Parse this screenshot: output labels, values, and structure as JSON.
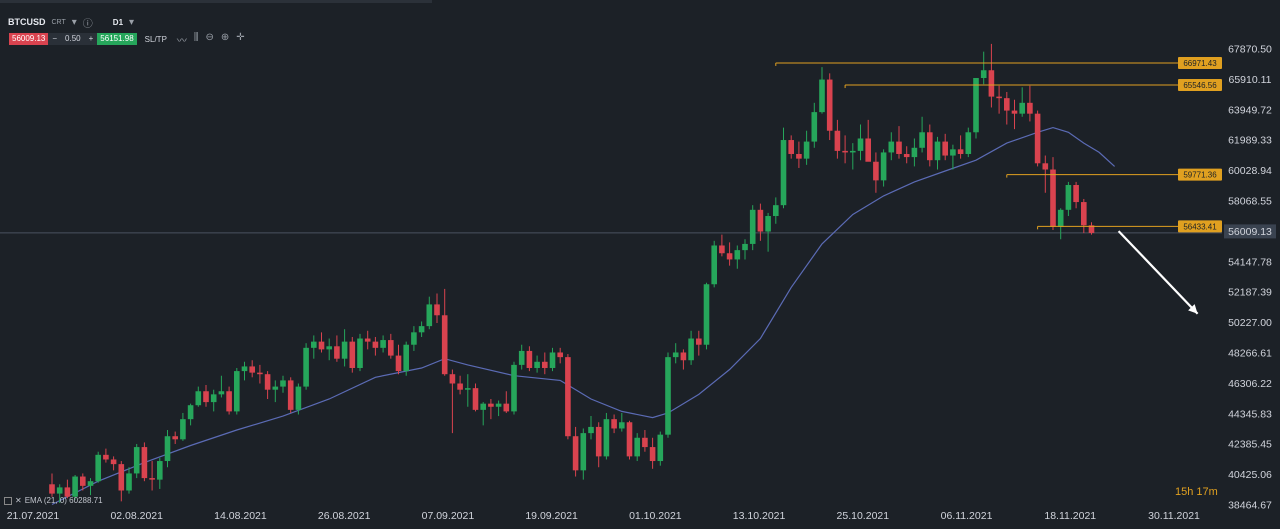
{
  "header": {
    "symbol": "BTCUSD",
    "symbol_type": "CRT",
    "timeframe": "D1",
    "sell_price": "56009.13",
    "minus": "−",
    "quantity": "0.50",
    "plus": "+",
    "buy_price": "56151.98",
    "sltp_label": "SL/TP"
  },
  "indicator": {
    "label": "EMA (21, 0) 60288.71"
  },
  "countdown": {
    "hours": "15h",
    "minutes": "17m"
  },
  "colors": {
    "background": "#1c2127",
    "up": "#26a65b",
    "down": "#d9434f",
    "ema": "#5b6bb5",
    "level": "#e0a020",
    "current_price": "#3a4048",
    "arrow": "#ffffff"
  },
  "chart_data": {
    "type": "candlestick",
    "symbol": "BTCUSD",
    "timeframe": "D1",
    "y_ticks": [
      "67870.50",
      "65910.11",
      "63949.72",
      "61989.33",
      "60028.94",
      "58068.55",
      "56009.13",
      "54147.78",
      "52187.39",
      "50227.00",
      "48266.61",
      "46306.22",
      "44345.83",
      "42385.45",
      "40425.06",
      "38464.67"
    ],
    "x_ticks": [
      "21.07.2021",
      "02.08.2021",
      "14.08.2021",
      "26.08.2021",
      "07.09.2021",
      "19.09.2021",
      "01.10.2021",
      "13.10.2021",
      "25.10.2021",
      "06.11.2021",
      "18.11.2021",
      "30.11.2021"
    ],
    "current_price": "56009.13",
    "levels": [
      "66971.43",
      "65546.56",
      "59771.36",
      "56433.41"
    ],
    "indicator": "EMA (21, 0) 60288.71",
    "series_candles": [
      [
        39800,
        40500,
        39000,
        39200
      ],
      [
        39200,
        39800,
        38600,
        39600
      ],
      [
        39600,
        40100,
        38900,
        39000
      ],
      [
        39000,
        40400,
        38800,
        40300
      ],
      [
        40300,
        40500,
        39400,
        39700
      ],
      [
        39700,
        40200,
        39100,
        40000
      ],
      [
        40000,
        41900,
        39900,
        41700
      ],
      [
        41700,
        42100,
        41200,
        41400
      ],
      [
        41400,
        41600,
        40700,
        41100
      ],
      [
        41100,
        41300,
        38700,
        39400
      ],
      [
        39400,
        40900,
        39200,
        40500
      ],
      [
        40500,
        42400,
        40200,
        42200
      ],
      [
        42200,
        42500,
        40000,
        40200
      ],
      [
        40200,
        41300,
        39400,
        40100
      ],
      [
        40100,
        41500,
        39500,
        41300
      ],
      [
        41300,
        43300,
        40900,
        42900
      ],
      [
        42900,
        43200,
        42400,
        42700
      ],
      [
        42700,
        44400,
        42600,
        44000
      ],
      [
        44000,
        45000,
        43600,
        44900
      ],
      [
        44900,
        46100,
        44800,
        45800
      ],
      [
        45800,
        46200,
        44800,
        45100
      ],
      [
        45100,
        45900,
        44500,
        45600
      ],
      [
        45600,
        46800,
        45400,
        45800
      ],
      [
        45800,
        46100,
        44300,
        44500
      ],
      [
        44500,
        47300,
        44300,
        47100
      ],
      [
        47100,
        47700,
        46500,
        47400
      ],
      [
        47400,
        47800,
        46700,
        47000
      ],
      [
        47000,
        47500,
        46300,
        46900
      ],
      [
        46900,
        47100,
        45300,
        45900
      ],
      [
        45900,
        46500,
        45100,
        46100
      ],
      [
        46100,
        46800,
        45700,
        46500
      ],
      [
        46500,
        46700,
        44400,
        44600
      ],
      [
        44600,
        46300,
        44300,
        46100
      ],
      [
        46100,
        48900,
        45900,
        48600
      ],
      [
        48600,
        49400,
        47900,
        49000
      ],
      [
        49000,
        49600,
        48300,
        48500
      ],
      [
        48500,
        49200,
        47800,
        48700
      ],
      [
        48700,
        49400,
        47700,
        47900
      ],
      [
        47900,
        49800,
        47400,
        49000
      ],
      [
        49000,
        49300,
        47000,
        47300
      ],
      [
        47300,
        49500,
        47100,
        49200
      ],
      [
        49200,
        49700,
        48500,
        49000
      ],
      [
        49000,
        49300,
        48100,
        48600
      ],
      [
        48600,
        49400,
        48300,
        49100
      ],
      [
        49100,
        49500,
        47900,
        48100
      ],
      [
        48100,
        48800,
        46900,
        47100
      ],
      [
        47100,
        49000,
        46800,
        48800
      ],
      [
        48800,
        50000,
        48400,
        49600
      ],
      [
        49600,
        50300,
        49300,
        50000
      ],
      [
        50000,
        51900,
        49800,
        51400
      ],
      [
        51400,
        52100,
        50200,
        50700
      ],
      [
        50700,
        52400,
        46800,
        46900
      ],
      [
        46900,
        47200,
        43100,
        46300
      ],
      [
        46300,
        46800,
        45600,
        45900
      ],
      [
        45900,
        46900,
        44800,
        46000
      ],
      [
        46000,
        46300,
        44500,
        44600
      ],
      [
        44600,
        45100,
        43600,
        45000
      ],
      [
        45000,
        45300,
        44000,
        44800
      ],
      [
        44800,
        45200,
        44200,
        45000
      ],
      [
        45000,
        45800,
        44400,
        44500
      ],
      [
        44500,
        47700,
        44300,
        47500
      ],
      [
        47500,
        48800,
        47200,
        48400
      ],
      [
        48400,
        48700,
        47100,
        47300
      ],
      [
        47300,
        48100,
        47000,
        47700
      ],
      [
        47700,
        48300,
        46900,
        47300
      ],
      [
        47300,
        48600,
        47100,
        48300
      ],
      [
        48300,
        48600,
        47600,
        48000
      ],
      [
        48000,
        48200,
        42700,
        42900
      ],
      [
        42900,
        43500,
        40300,
        40700
      ],
      [
        40700,
        43400,
        40100,
        43100
      ],
      [
        43100,
        44200,
        42700,
        43500
      ],
      [
        43500,
        43800,
        40900,
        41600
      ],
      [
        41600,
        44400,
        41400,
        44000
      ],
      [
        44000,
        44300,
        43100,
        43400
      ],
      [
        43400,
        44400,
        43200,
        43800
      ],
      [
        43800,
        43900,
        41400,
        41600
      ],
      [
        41600,
        43100,
        41300,
        42800
      ],
      [
        42800,
        43300,
        41900,
        42200
      ],
      [
        42200,
        42800,
        40800,
        41300
      ],
      [
        41300,
        43200,
        41000,
        43000
      ],
      [
        43000,
        48300,
        42800,
        48000
      ],
      [
        48000,
        48900,
        47600,
        48300
      ],
      [
        48300,
        48500,
        47200,
        47800
      ],
      [
        47800,
        49700,
        47500,
        49200
      ],
      [
        49200,
        49700,
        48100,
        48800
      ],
      [
        48800,
        52800,
        48500,
        52700
      ],
      [
        52700,
        55500,
        52500,
        55200
      ],
      [
        55200,
        55900,
        54500,
        54700
      ],
      [
        54700,
        55400,
        53900,
        54300
      ],
      [
        54300,
        55200,
        53700,
        54900
      ],
      [
        54900,
        55600,
        54300,
        55300
      ],
      [
        55300,
        57800,
        54900,
        57500
      ],
      [
        57500,
        57900,
        55500,
        56100
      ],
      [
        56100,
        57300,
        54800,
        57100
      ],
      [
        57100,
        58300,
        56600,
        57800
      ],
      [
        57800,
        62800,
        57600,
        62000
      ],
      [
        62000,
        62300,
        60800,
        61100
      ],
      [
        61100,
        61900,
        60200,
        60800
      ],
      [
        60800,
        62600,
        60400,
        61900
      ],
      [
        61900,
        64400,
        61500,
        63800
      ],
      [
        63800,
        66700,
        63700,
        65900
      ],
      [
        65900,
        66300,
        62000,
        62600
      ],
      [
        62600,
        63300,
        60800,
        61300
      ],
      [
        61300,
        62300,
        60500,
        61200
      ],
      [
        61200,
        61800,
        60100,
        61300
      ],
      [
        61300,
        63000,
        60700,
        62100
      ],
      [
        62100,
        63300,
        60900,
        60600
      ],
      [
        60600,
        61200,
        58600,
        59400
      ],
      [
        59400,
        61400,
        59000,
        61200
      ],
      [
        61200,
        62500,
        60700,
        61900
      ],
      [
        61900,
        62900,
        60800,
        61100
      ],
      [
        61100,
        61600,
        60500,
        60900
      ],
      [
        60900,
        62100,
        60300,
        61500
      ],
      [
        61500,
        63500,
        61200,
        62500
      ],
      [
        62500,
        63000,
        60300,
        60700
      ],
      [
        60700,
        62200,
        60100,
        61900
      ],
      [
        61900,
        62400,
        60700,
        61000
      ],
      [
        61000,
        61700,
        60100,
        61400
      ],
      [
        61400,
        62300,
        60800,
        61100
      ],
      [
        61100,
        62800,
        60900,
        62500
      ],
      [
        62500,
        64600,
        62100,
        66000
      ],
      [
        66000,
        67700,
        65600,
        66500
      ],
      [
        66500,
        68200,
        64100,
        64800
      ],
      [
        64800,
        65500,
        63700,
        64700
      ],
      [
        64700,
        65100,
        63000,
        63900
      ],
      [
        63900,
        64600,
        62700,
        63700
      ],
      [
        63700,
        65400,
        63500,
        64400
      ],
      [
        64400,
        65500,
        63200,
        63700
      ],
      [
        63700,
        63900,
        60300,
        60500
      ],
      [
        60500,
        61000,
        58600,
        60100
      ],
      [
        60100,
        60900,
        56200,
        56400
      ],
      [
        56400,
        57600,
        55600,
        57500
      ],
      [
        57500,
        59300,
        57100,
        59100
      ],
      [
        59100,
        59300,
        57600,
        58000
      ],
      [
        58000,
        58200,
        56000,
        56500
      ],
      [
        56500,
        56700,
        55900,
        56009
      ]
    ],
    "ema21": [
      [
        0,
        38500
      ],
      [
        6,
        40000
      ],
      [
        12,
        41200
      ],
      [
        18,
        42300
      ],
      [
        24,
        43300
      ],
      [
        30,
        44200
      ],
      [
        36,
        45300
      ],
      [
        42,
        46700
      ],
      [
        48,
        47300
      ],
      [
        51,
        47900
      ],
      [
        54,
        47500
      ],
      [
        60,
        46800
      ],
      [
        66,
        46500
      ],
      [
        70,
        45300
      ],
      [
        74,
        44500
      ],
      [
        78,
        44100
      ],
      [
        80,
        44400
      ],
      [
        84,
        45600
      ],
      [
        88,
        47200
      ],
      [
        92,
        49200
      ],
      [
        96,
        52500
      ],
      [
        100,
        55300
      ],
      [
        104,
        57200
      ],
      [
        108,
        58400
      ],
      [
        112,
        59300
      ],
      [
        116,
        60000
      ],
      [
        120,
        60700
      ],
      [
        124,
        61800
      ],
      [
        128,
        62500
      ],
      [
        130,
        62800
      ],
      [
        132,
        62500
      ],
      [
        134,
        61800
      ],
      [
        136,
        61200
      ],
      [
        138,
        60300
      ]
    ],
    "trend_arrow": {
      "from_x": 138,
      "from_y": 56000,
      "to_x": 148,
      "to_y": 50800
    }
  }
}
